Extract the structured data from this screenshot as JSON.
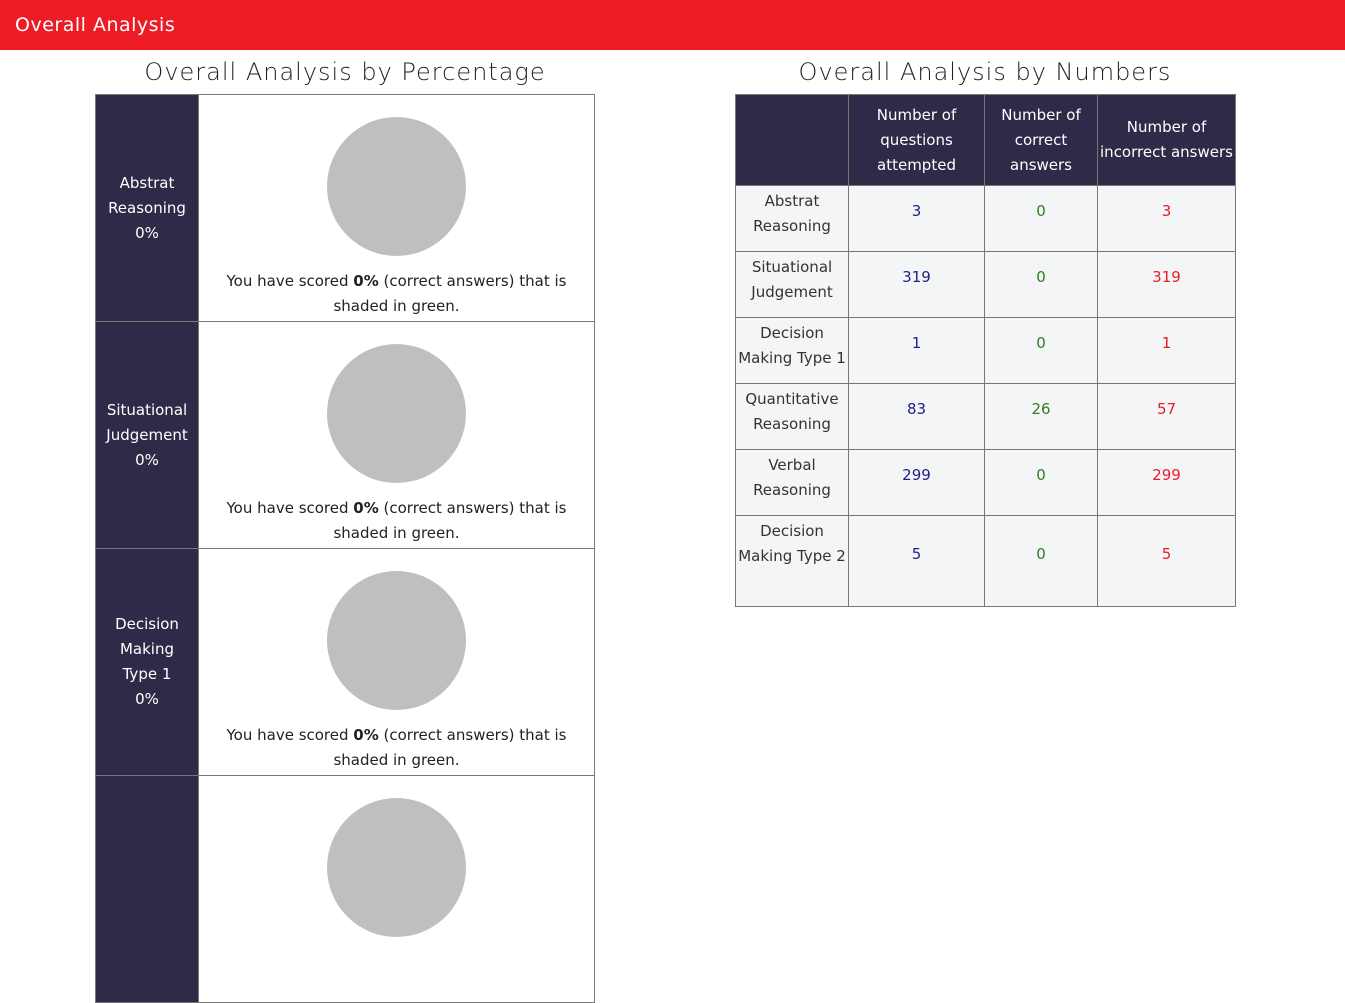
{
  "header": {
    "title": "Overall Analysis"
  },
  "percentage_section": {
    "title": "Overall Analysis by Percentage",
    "rows": [
      {
        "label_lines": [
          "Abstrat",
          "Reasoning",
          "0%"
        ],
        "score_prefix": "You have scored ",
        "score_value": "0%",
        "score_suffix": " (correct answers) that is shaded in green."
      },
      {
        "label_lines": [
          "Situational",
          "Judgement",
          "0%"
        ],
        "score_prefix": "You have scored ",
        "score_value": "0%",
        "score_suffix": " (correct answers) that is shaded in green."
      },
      {
        "label_lines": [
          "Decision",
          "Making",
          "Type 1",
          "0%"
        ],
        "score_prefix": "You have scored ",
        "score_value": "0%",
        "score_suffix": " (correct answers) that is shaded in green."
      },
      {
        "label_lines": [
          "",
          "",
          ""
        ],
        "score_prefix": "",
        "score_value": "",
        "score_suffix": ""
      }
    ]
  },
  "numbers_section": {
    "title": "Overall Analysis by Numbers",
    "headers": [
      "",
      "Number of questions attempted",
      "Number of correct answers",
      "Number of incorrect answers"
    ],
    "rows": [
      {
        "name": "Abstrat Reasoning",
        "attempted": "3",
        "correct": "0",
        "incorrect": "3"
      },
      {
        "name": "Situational Judgement",
        "attempted": "319",
        "correct": "0",
        "incorrect": "319"
      },
      {
        "name": "Decision Making Type 1",
        "attempted": "1",
        "correct": "0",
        "incorrect": "1"
      },
      {
        "name": "Quantitative Reasoning",
        "attempted": "83",
        "correct": "26",
        "incorrect": "57"
      },
      {
        "name": "Verbal Reasoning",
        "attempted": "299",
        "correct": "0",
        "incorrect": "299"
      },
      {
        "name": "Decision Making Type 2",
        "attempted": "5",
        "correct": "0",
        "incorrect": "5"
      }
    ]
  },
  "colors": {
    "header_red": "#ed1c24",
    "navy": "#2e2b48",
    "pie_gray": "#bfbfbf",
    "attempted_blue": "#1f1f8a",
    "correct_green": "#2e7d1f",
    "incorrect_red": "#ed1c24"
  }
}
